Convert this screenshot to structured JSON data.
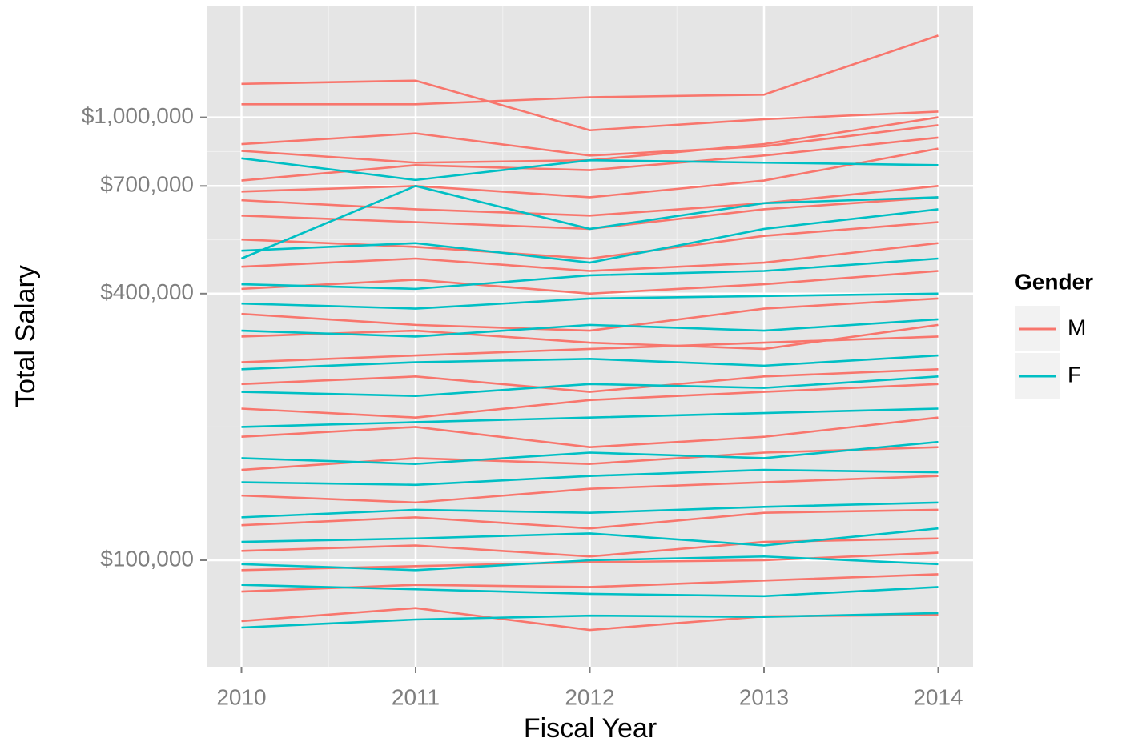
{
  "chart_data": {
    "type": "line",
    "y_scale": "log",
    "grid": true,
    "legend_position": "right",
    "x_label": "Fiscal Year",
    "y_label": "Total Salary",
    "legend_title": "Gender",
    "x": [
      2010,
      2011,
      2012,
      2013,
      2014
    ],
    "xlim": [
      2009.8,
      2014.2
    ],
    "xticks": [
      2010,
      2011,
      2012,
      2013,
      2014
    ],
    "minor_xticks": [
      2010.5,
      2011.5,
      2012.5,
      2013.5
    ],
    "ylim": [
      57500,
      1780000
    ],
    "yticks": [
      {
        "value": 100000,
        "label": "$100,000"
      },
      {
        "value": 400000,
        "label": "$400,000"
      },
      {
        "value": 700000,
        "label": "$700,000"
      },
      {
        "value": 1000000,
        "label": "$1,000,000"
      }
    ],
    "minor_yticks": [
      200000,
      529000,
      837000
    ],
    "series": [
      {
        "name": "M",
        "color": "#f8766d",
        "lines": [
          [
            1190000,
            1210000,
            935000,
            990000,
            1030000
          ],
          [
            1070000,
            1070000,
            1110000,
            1125000,
            1530000
          ],
          [
            870000,
            920000,
            820000,
            860000,
            960000
          ],
          [
            840000,
            790000,
            800000,
            870000,
            1000000
          ],
          [
            720000,
            780000,
            760000,
            820000,
            900000
          ],
          [
            680000,
            700000,
            660000,
            720000,
            850000
          ],
          [
            650000,
            620000,
            600000,
            640000,
            700000
          ],
          [
            600000,
            580000,
            560000,
            620000,
            660000
          ],
          [
            530000,
            510000,
            480000,
            540000,
            580000
          ],
          [
            460000,
            480000,
            450000,
            470000,
            520000
          ],
          [
            410000,
            430000,
            400000,
            420000,
            450000
          ],
          [
            360000,
            340000,
            330000,
            370000,
            390000
          ],
          [
            320000,
            330000,
            310000,
            300000,
            340000
          ],
          [
            280000,
            290000,
            300000,
            310000,
            320000
          ],
          [
            250000,
            260000,
            240000,
            260000,
            270000
          ],
          [
            220000,
            210000,
            230000,
            240000,
            250000
          ],
          [
            190000,
            200000,
            180000,
            190000,
            210000
          ],
          [
            160000,
            170000,
            165000,
            175000,
            180000
          ],
          [
            140000,
            135000,
            145000,
            150000,
            155000
          ],
          [
            120000,
            125000,
            118000,
            128000,
            130000
          ],
          [
            105000,
            108000,
            102000,
            110000,
            112000
          ],
          [
            95000,
            97000,
            99000,
            100000,
            104000
          ],
          [
            85000,
            88000,
            87000,
            90000,
            93000
          ],
          [
            72900,
            78000,
            69600,
            74700,
            75300
          ]
        ]
      },
      {
        "name": "F",
        "color": "#00bfc4",
        "lines": [
          [
            808000,
            722000,
            800000,
            790000,
            780000
          ],
          [
            480000,
            700000,
            560000,
            640000,
            660000
          ],
          [
            500000,
            520000,
            470000,
            560000,
            620000
          ],
          [
            420000,
            410000,
            440000,
            450000,
            480000
          ],
          [
            380000,
            370000,
            390000,
            395000,
            400000
          ],
          [
            330000,
            320000,
            340000,
            330000,
            350000
          ],
          [
            270000,
            280000,
            285000,
            275000,
            290000
          ],
          [
            240000,
            235000,
            250000,
            245000,
            260000
          ],
          [
            200000,
            205000,
            210000,
            215000,
            220000
          ],
          [
            170000,
            165000,
            175000,
            170000,
            185000
          ],
          [
            150000,
            148000,
            155000,
            160000,
            158000
          ],
          [
            125000,
            130000,
            128000,
            132000,
            135000
          ],
          [
            110000,
            112000,
            115000,
            108000,
            118000
          ],
          [
            98000,
            95000,
            100000,
            102000,
            98000
          ],
          [
            88000,
            86000,
            84000,
            83000,
            87000
          ],
          [
            70500,
            73500,
            75000,
            74500,
            76000
          ]
        ]
      }
    ]
  }
}
